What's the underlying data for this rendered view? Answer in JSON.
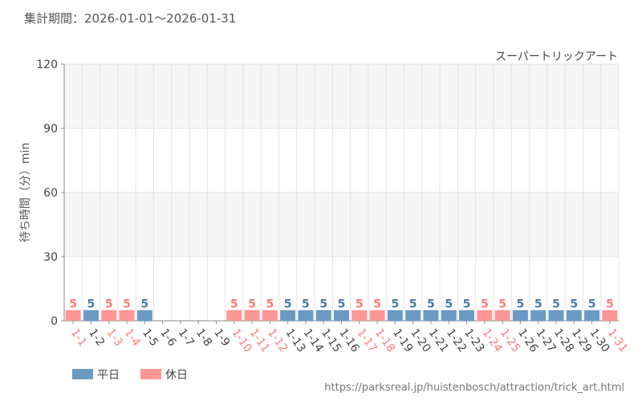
{
  "header": {
    "period_text": "集計期間：2026-01-01～2026-01-31"
  },
  "footer": {
    "source_url": "https://parksreal.jp/huistenbosch/attraction/trick_art.html"
  },
  "colors": {
    "weekday": "#6a9ac4",
    "holiday": "#ff9696",
    "weekday_label": "#4a7aa4",
    "holiday_label": "#ff7a7a",
    "band": "#f5f5f5",
    "grid": "#e3e3e3"
  },
  "chart_data": {
    "type": "bar",
    "title": "スーパートリックアート",
    "xlabel": "",
    "ylabel": "待ち時間（分）min",
    "ylim": [
      0,
      120
    ],
    "yticks": [
      0,
      30,
      60,
      90,
      120
    ],
    "grid": true,
    "legend_position": "bottom-left",
    "categories": [
      "1-1",
      "1-2",
      "1-3",
      "1-4",
      "1-5",
      "1-6",
      "1-7",
      "1-8",
      "1-9",
      "1-10",
      "1-11",
      "1-12",
      "1-13",
      "1-14",
      "1-15",
      "1-16",
      "1-17",
      "1-18",
      "1-19",
      "1-20",
      "1-21",
      "1-22",
      "1-23",
      "1-24",
      "1-25",
      "1-26",
      "1-27",
      "1-28",
      "1-29",
      "1-30",
      "1-31"
    ],
    "values": [
      5,
      5,
      5,
      5,
      5,
      null,
      null,
      null,
      null,
      5,
      5,
      5,
      5,
      5,
      5,
      5,
      5,
      5,
      5,
      5,
      5,
      5,
      5,
      5,
      5,
      5,
      5,
      5,
      5,
      5,
      5
    ],
    "day_type": [
      "holiday",
      "weekday",
      "holiday",
      "holiday",
      "weekday",
      "weekday",
      "weekday",
      "weekday",
      "weekday",
      "holiday",
      "holiday",
      "holiday",
      "weekday",
      "weekday",
      "weekday",
      "weekday",
      "holiday",
      "holiday",
      "weekday",
      "weekday",
      "weekday",
      "weekday",
      "weekday",
      "holiday",
      "holiday",
      "weekday",
      "weekday",
      "weekday",
      "weekday",
      "weekday",
      "holiday"
    ],
    "legend": [
      {
        "key": "weekday",
        "label": "平日"
      },
      {
        "key": "holiday",
        "label": "休日"
      }
    ]
  }
}
